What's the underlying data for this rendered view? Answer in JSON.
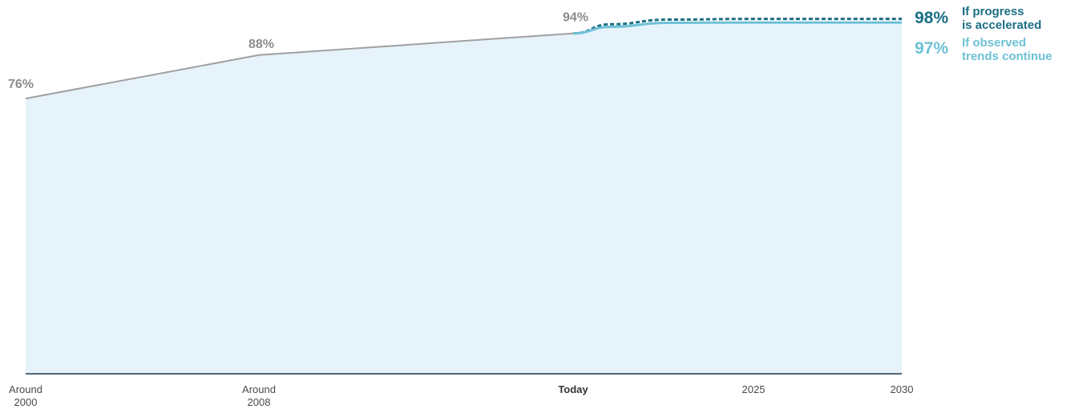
{
  "chart_data": {
    "type": "area",
    "ylim": [
      0,
      100
    ],
    "x": [
      "Around 2000",
      "Around 2008",
      "Today",
      "2025",
      "2030"
    ],
    "x_positions": [
      2000,
      2008,
      2018.7,
      2025,
      2030
    ],
    "x_tick_labels": [
      {
        "lines": [
          "Around",
          "2000"
        ],
        "bold": false
      },
      {
        "lines": [
          "Around",
          "2008"
        ],
        "bold": false
      },
      {
        "lines": [
          "Today"
        ],
        "bold": true
      },
      {
        "lines": [
          "2025"
        ],
        "bold": false
      },
      {
        "lines": [
          "2030"
        ],
        "bold": false
      }
    ],
    "historical": {
      "points": [
        {
          "x": 2000,
          "y": 76,
          "label": "76%"
        },
        {
          "x": 2008,
          "y": 88,
          "label": "88%"
        },
        {
          "x": 2018.7,
          "y": 94,
          "label": "94%"
        }
      ],
      "color": "#a0a0a0"
    },
    "series": [
      {
        "name": "If progress is accelerated",
        "name_lines": [
          "If progress",
          "is accelerated"
        ],
        "end_label": "98%",
        "style": "dashed",
        "color": "#1b6e84",
        "points": [
          [
            2018.7,
            94
          ],
          [
            2020,
            96.5
          ],
          [
            2022,
            97.8
          ],
          [
            2025,
            98
          ],
          [
            2030,
            98
          ]
        ]
      },
      {
        "name": "If observed trends continue",
        "name_lines": [
          "If observed",
          "trends continue"
        ],
        "end_label": "97%",
        "style": "solid",
        "color": "#6ec1d6",
        "points": [
          [
            2018.7,
            94
          ],
          [
            2020,
            95.8
          ],
          [
            2022,
            96.9
          ],
          [
            2025,
            97
          ],
          [
            2030,
            97
          ]
        ]
      }
    ],
    "area_color": "#e6f3fa",
    "axis_color": "#1e3552"
  }
}
